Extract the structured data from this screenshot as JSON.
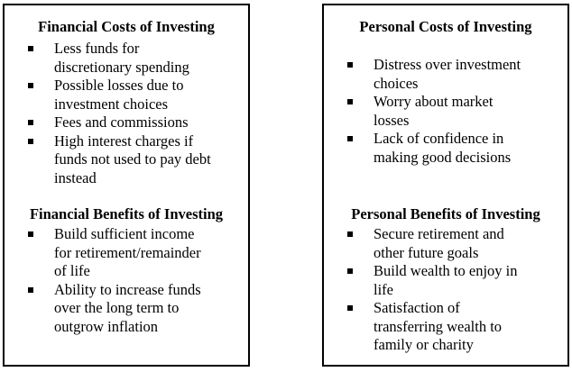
{
  "left": {
    "costs": {
      "title": "Financial Costs of Investing",
      "items": [
        {
          "lines": [
            "Less funds for",
            "discretionary spending"
          ]
        },
        {
          "lines": [
            "Possible losses due to",
            "investment choices"
          ]
        },
        {
          "lines": [
            "Fees and commissions"
          ]
        },
        {
          "lines": [
            "High interest charges if",
            "funds not used to pay debt",
            "instead"
          ]
        }
      ]
    },
    "benefits": {
      "title": "Financial Benefits of Investing",
      "items": [
        {
          "lines": [
            "Build sufficient income",
            "for retirement/remainder",
            "of life"
          ]
        },
        {
          "lines": [
            "Ability to increase funds",
            "over the long term to",
            "outgrow inflation"
          ]
        }
      ]
    }
  },
  "right": {
    "costs": {
      "title": "Personal Costs of Investing",
      "items": [
        {
          "lines": [
            "Distress over investment",
            "choices"
          ]
        },
        {
          "lines": [
            "Worry about market",
            "losses"
          ]
        },
        {
          "lines": [
            "Lack of confidence in",
            "making good decisions"
          ]
        }
      ]
    },
    "benefits": {
      "title": "Personal Benefits of Investing",
      "items": [
        {
          "lines": [
            "Secure retirement and",
            "other future goals"
          ]
        },
        {
          "lines": [
            "Build wealth to enjoy in",
            "life"
          ]
        },
        {
          "lines": [
            "Satisfaction of",
            "transferring wealth to",
            "family or charity"
          ]
        }
      ]
    }
  }
}
